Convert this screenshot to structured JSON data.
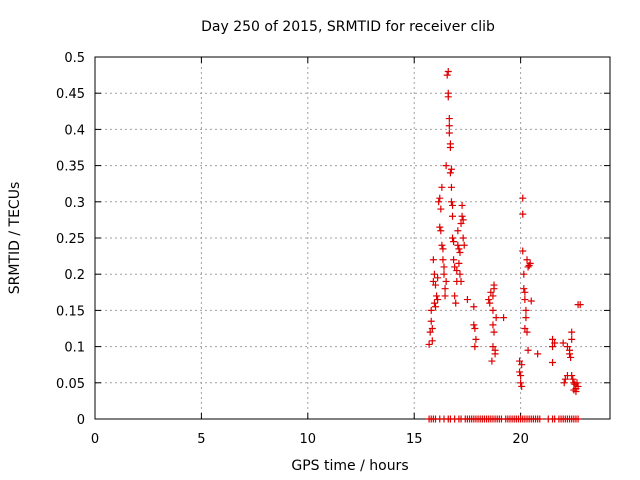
{
  "chart_data": {
    "type": "scatter",
    "title": "Day 250 of 2015, SRMTID for receiver clib",
    "xlabel": "GPS time / hours",
    "ylabel": "SRMTID / TECUs",
    "xlim": [
      0,
      24.2
    ],
    "ylim": [
      0,
      0.5
    ],
    "xticks": [
      0,
      5,
      10,
      15,
      20
    ],
    "xtick_labels": [
      "0",
      "5",
      "10",
      "15",
      "20"
    ],
    "yticks": [
      0,
      0.05,
      0.1,
      0.15,
      0.2,
      0.25,
      0.3,
      0.35,
      0.4,
      0.45,
      0.5
    ],
    "ytick_labels": [
      "0",
      "0.05",
      "0.1",
      "0.15",
      "0.2",
      "0.25",
      "0.3",
      "0.35",
      "0.4",
      "0.45",
      "0.5"
    ],
    "grid": true,
    "marker": "+",
    "color": "#dd0000",
    "series": [
      {
        "points": [
          [
            15.7,
            0.103
          ],
          [
            15.75,
            0.12
          ],
          [
            15.8,
            0.15
          ],
          [
            15.8,
            0.135
          ],
          [
            15.85,
            0.108
          ],
          [
            15.85,
            0.125
          ],
          [
            15.9,
            0.22
          ],
          [
            15.9,
            0.19
          ],
          [
            15.95,
            0.2
          ],
          [
            15.95,
            0.16
          ],
          [
            16.0,
            0.155
          ],
          [
            16.0,
            0.185
          ],
          [
            16.05,
            0.17
          ],
          [
            16.1,
            0.165
          ],
          [
            16.1,
            0.195
          ],
          [
            16.15,
            0.3
          ],
          [
            16.2,
            0.305
          ],
          [
            16.2,
            0.265
          ],
          [
            16.25,
            0.29
          ],
          [
            16.25,
            0.26
          ],
          [
            16.3,
            0.32
          ],
          [
            16.3,
            0.24
          ],
          [
            16.35,
            0.235
          ],
          [
            16.35,
            0.22
          ],
          [
            16.4,
            0.21
          ],
          [
            16.4,
            0.2
          ],
          [
            16.45,
            0.18
          ],
          [
            16.45,
            0.17
          ],
          [
            16.5,
            0.35
          ],
          [
            16.5,
            0.19
          ],
          [
            16.55,
            0.475
          ],
          [
            16.6,
            0.48
          ],
          [
            16.6,
            0.45
          ],
          [
            16.6,
            0.445
          ],
          [
            16.65,
            0.415
          ],
          [
            16.65,
            0.405
          ],
          [
            16.65,
            0.395
          ],
          [
            16.7,
            0.38
          ],
          [
            16.7,
            0.375
          ],
          [
            16.7,
            0.34
          ],
          [
            16.75,
            0.345
          ],
          [
            16.75,
            0.3
          ],
          [
            16.75,
            0.32
          ],
          [
            16.8,
            0.295
          ],
          [
            16.8,
            0.28
          ],
          [
            16.8,
            0.25
          ],
          [
            16.85,
            0.245
          ],
          [
            16.85,
            0.22
          ],
          [
            16.9,
            0.21
          ],
          [
            16.9,
            0.17
          ],
          [
            16.95,
            0.16
          ],
          [
            17.0,
            0.19
          ],
          [
            17.0,
            0.205
          ],
          [
            17.05,
            0.24
          ],
          [
            17.05,
            0.26
          ],
          [
            17.1,
            0.235
          ],
          [
            17.1,
            0.215
          ],
          [
            17.15,
            0.23
          ],
          [
            17.15,
            0.2
          ],
          [
            17.2,
            0.19
          ],
          [
            17.2,
            0.27
          ],
          [
            17.25,
            0.295
          ],
          [
            17.25,
            0.28
          ],
          [
            17.3,
            0.275
          ],
          [
            17.3,
            0.25
          ],
          [
            17.35,
            0.24
          ],
          [
            17.5,
            0.165
          ],
          [
            17.8,
            0.155
          ],
          [
            17.8,
            0.13
          ],
          [
            17.85,
            0.125
          ],
          [
            17.85,
            0.1
          ],
          [
            17.9,
            0.11
          ],
          [
            18.5,
            0.165
          ],
          [
            18.55,
            0.16
          ],
          [
            18.6,
            0.175
          ],
          [
            18.7,
            0.17
          ],
          [
            18.7,
            0.15
          ],
          [
            18.75,
            0.18
          ],
          [
            18.75,
            0.185
          ],
          [
            18.7,
            0.13
          ],
          [
            18.75,
            0.12
          ],
          [
            18.7,
            0.1
          ],
          [
            18.8,
            0.095
          ],
          [
            18.65,
            0.08
          ],
          [
            18.8,
            0.09
          ],
          [
            18.85,
            0.14
          ],
          [
            19.2,
            0.14
          ],
          [
            19.95,
            0.08
          ],
          [
            19.95,
            0.065
          ],
          [
            20.0,
            0.06
          ],
          [
            20.0,
            0.05
          ],
          [
            20.05,
            0.075
          ],
          [
            20.05,
            0.045
          ],
          [
            20.1,
            0.305
          ],
          [
            20.1,
            0.283
          ],
          [
            20.1,
            0.232
          ],
          [
            20.15,
            0.2
          ],
          [
            20.15,
            0.18
          ],
          [
            20.2,
            0.175
          ],
          [
            20.2,
            0.165
          ],
          [
            20.25,
            0.15
          ],
          [
            20.25,
            0.14
          ],
          [
            20.2,
            0.125
          ],
          [
            20.3,
            0.12
          ],
          [
            20.3,
            0.22
          ],
          [
            20.35,
            0.21
          ],
          [
            20.4,
            0.212
          ],
          [
            20.45,
            0.215
          ],
          [
            20.35,
            0.095
          ],
          [
            20.5,
            0.163
          ],
          [
            20.8,
            0.09
          ],
          [
            21.5,
            0.11
          ],
          [
            21.5,
            0.1
          ],
          [
            21.5,
            0.078
          ],
          [
            21.6,
            0.105
          ],
          [
            22.0,
            0.105
          ],
          [
            22.05,
            0.05
          ],
          [
            22.1,
            0.055
          ],
          [
            22.2,
            0.06
          ],
          [
            22.2,
            0.1
          ],
          [
            22.3,
            0.095
          ],
          [
            22.3,
            0.09
          ],
          [
            22.35,
            0.085
          ],
          [
            22.4,
            0.11
          ],
          [
            22.4,
            0.12
          ],
          [
            22.4,
            0.06
          ],
          [
            22.45,
            0.055
          ],
          [
            22.5,
            0.05
          ],
          [
            22.5,
            0.04
          ],
          [
            22.55,
            0.048
          ],
          [
            22.6,
            0.042
          ],
          [
            22.6,
            0.038
          ],
          [
            22.65,
            0.05
          ],
          [
            22.7,
            0.045
          ],
          [
            22.7,
            0.158
          ],
          [
            22.8,
            0.158
          ],
          [
            15.7,
            0
          ],
          [
            15.8,
            0
          ],
          [
            15.9,
            0
          ],
          [
            16.0,
            0
          ],
          [
            16.2,
            0
          ],
          [
            16.4,
            0
          ],
          [
            16.6,
            0
          ],
          [
            16.7,
            0
          ],
          [
            16.9,
            0
          ],
          [
            17.1,
            0
          ],
          [
            17.2,
            0
          ],
          [
            17.4,
            0
          ],
          [
            17.5,
            0
          ],
          [
            17.6,
            0
          ],
          [
            17.7,
            0
          ],
          [
            17.8,
            0
          ],
          [
            17.9,
            0
          ],
          [
            18.0,
            0
          ],
          [
            18.1,
            0
          ],
          [
            18.2,
            0
          ],
          [
            18.3,
            0
          ],
          [
            18.4,
            0
          ],
          [
            18.5,
            0
          ],
          [
            18.6,
            0
          ],
          [
            18.7,
            0
          ],
          [
            18.8,
            0
          ],
          [
            18.9,
            0
          ],
          [
            19.0,
            0
          ],
          [
            19.1,
            0
          ],
          [
            19.3,
            0
          ],
          [
            19.4,
            0
          ],
          [
            19.5,
            0
          ],
          [
            19.6,
            0
          ],
          [
            19.7,
            0
          ],
          [
            19.8,
            0
          ],
          [
            19.9,
            0
          ],
          [
            20.0,
            0
          ],
          [
            20.1,
            0
          ],
          [
            20.2,
            0
          ],
          [
            20.3,
            0
          ],
          [
            20.4,
            0
          ],
          [
            20.5,
            0
          ],
          [
            20.6,
            0
          ],
          [
            20.7,
            0
          ],
          [
            20.8,
            0
          ],
          [
            20.9,
            0
          ],
          [
            21.3,
            0
          ],
          [
            21.5,
            0
          ],
          [
            21.6,
            0
          ],
          [
            21.8,
            0
          ],
          [
            21.9,
            0
          ],
          [
            22.0,
            0
          ],
          [
            22.1,
            0
          ],
          [
            22.2,
            0
          ],
          [
            22.3,
            0
          ],
          [
            22.4,
            0
          ],
          [
            22.5,
            0
          ],
          [
            22.6,
            0
          ],
          [
            22.7,
            0
          ]
        ]
      }
    ]
  }
}
